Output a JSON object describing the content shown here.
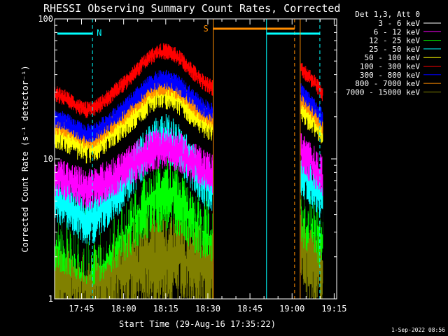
{
  "chart_data": {
    "type": "line",
    "title": "RHESSI Observing Summary Count Rates, Corrected",
    "xlabel": "Start Time (29-Aug-16 17:35:22)",
    "ylabel": "Corrected Count Rate (s⁻¹ detector⁻¹)",
    "yscale": "log",
    "ylim": [
      1,
      100
    ],
    "y_ticks": [
      "1",
      "10",
      "100"
    ],
    "x_ticks": [
      {
        "label": "17:45",
        "min": 9.6
      },
      {
        "label": "18:00",
        "min": 24.6
      },
      {
        "label": "18:15",
        "min": 39.6
      },
      {
        "label": "18:30",
        "min": 54.6
      },
      {
        "label": "18:45",
        "min": 69.6
      },
      {
        "label": "19:00",
        "min": 84.6
      },
      {
        "label": "19:15",
        "min": 99.6
      }
    ],
    "xlim_min": [
      0,
      100.5
    ],
    "legend_header": "Det 1,3, Att 0",
    "legend_position": "right",
    "series": [
      {
        "name": "3 - 6 keV",
        "color": "#000000",
        "base": 5.0,
        "amp": 1.0,
        "noise": 0.35
      },
      {
        "name": "6 - 12 keV",
        "color": "#ff00ff",
        "base": 7.5,
        "amp": 0.45,
        "noise": 0.15
      },
      {
        "name": "12 - 25 keV",
        "color": "#00ff00",
        "base": 3.2,
        "amp": 0.6,
        "noise": 0.3
      },
      {
        "name": "25 - 50 keV",
        "color": "#00ffff",
        "base": 5.5,
        "amp": 0.9,
        "noise": 0.18
      },
      {
        "name": "50 - 100 keV",
        "color": "#ffff00",
        "base": 16,
        "amp": 0.6,
        "noise": 0.12
      },
      {
        "name": "100 - 300 keV",
        "color": "#ff0000",
        "base": 30,
        "amp": 0.65,
        "noise": 0.06
      },
      {
        "name": "300 - 800 keV",
        "color": "#0000ff",
        "base": 20,
        "amp": 0.6,
        "noise": 0.07
      },
      {
        "name": "800 - 7000 keV",
        "color": "#ff8c00",
        "base": 18,
        "amp": 0.6,
        "noise": 0.07
      },
      {
        "name": "7000 - 15000 keV",
        "color": "#808000",
        "base": 1.6,
        "amp": 0.2,
        "noise": 0.35
      }
    ],
    "data_gap_min": [
      56.5,
      87.5
    ],
    "annotations": [
      {
        "label": "N",
        "color": "#00ffff",
        "x_min": 13.5
      },
      {
        "label": "S",
        "color": "#ff8c00",
        "x_min": 56.5
      }
    ],
    "footer_stamp": "1-Sep-2022 08:56"
  }
}
